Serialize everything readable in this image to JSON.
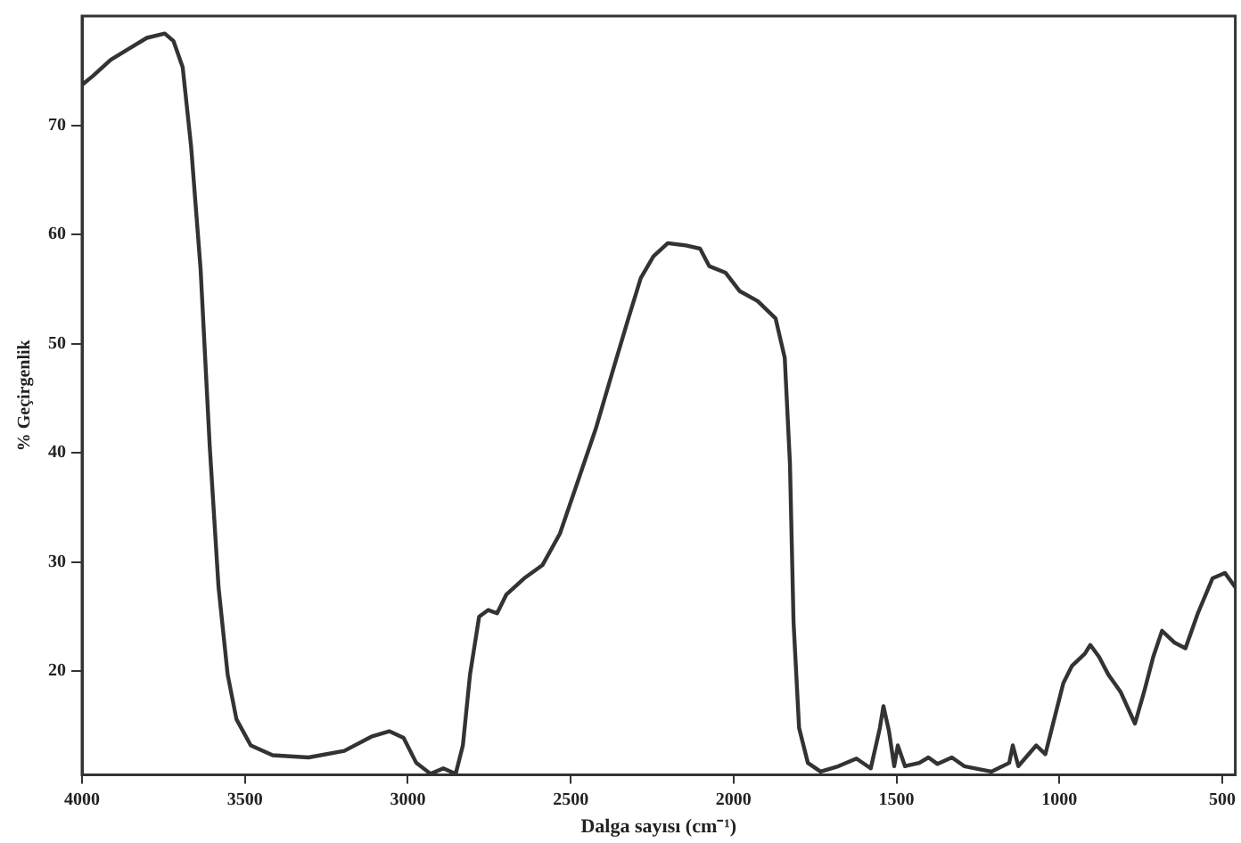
{
  "chart_data": {
    "type": "line",
    "xlabel": "Dalga sayısı (cm⁻¹)",
    "ylabel": "% Geçirgenlik",
    "xlim": [
      4000,
      460
    ],
    "xticks": [
      4000,
      3500,
      3000,
      2500,
      2000,
      1500,
      1000,
      500
    ],
    "ylim": [
      10.5,
      80
    ],
    "yticks": [
      20,
      30,
      40,
      50,
      60,
      70
    ],
    "grid": false,
    "legend": false,
    "marker": "none",
    "line_style": "solid",
    "series": [
      {
        "color": "#333333",
        "x": [
          4000,
          3967,
          3912,
          3857,
          3801,
          3746,
          3719,
          3691,
          3665,
          3636,
          3608,
          3581,
          3553,
          3526,
          3482,
          3415,
          3305,
          3195,
          3112,
          3057,
          3013,
          2974,
          2930,
          2891,
          2853,
          2831,
          2809,
          2781,
          2753,
          2726,
          2698,
          2643,
          2587,
          2533,
          2478,
          2422,
          2367,
          2323,
          2285,
          2246,
          2202,
          2147,
          2103,
          2075,
          2025,
          1981,
          1926,
          1871,
          1843,
          1827,
          1816,
          1799,
          1772,
          1733,
          1678,
          1623,
          1579,
          1551,
          1540,
          1523,
          1507,
          1496,
          1474,
          1430,
          1402,
          1374,
          1330,
          1292,
          1209,
          1154,
          1143,
          1126,
          1071,
          1043,
          1016,
          988,
          961,
          922,
          905,
          878,
          850,
          812,
          768,
          740,
          712,
          685,
          646,
          613,
          575,
          530,
          492,
          460
        ],
        "values": [
          73.7,
          74.5,
          76,
          77,
          78,
          78.4,
          77.7,
          75.3,
          68,
          56.8,
          40.6,
          27.7,
          19.7,
          15.6,
          13.2,
          12.3,
          12.1,
          12.7,
          14,
          14.5,
          13.9,
          11.6,
          10.6,
          11.1,
          10.6,
          13.2,
          19.7,
          25,
          25.6,
          25.3,
          27,
          28.5,
          29.7,
          32.6,
          37.4,
          42.3,
          47.9,
          52.3,
          56,
          58,
          59.2,
          59,
          58.7,
          57.1,
          56.5,
          54.8,
          53.9,
          52.3,
          48.7,
          39,
          24.5,
          14.8,
          11.6,
          10.8,
          11.3,
          12,
          11.1,
          14.8,
          16.8,
          14.5,
          11.3,
          13.2,
          11.3,
          11.6,
          12.1,
          11.5,
          12.1,
          11.3,
          10.8,
          11.6,
          13.2,
          11.3,
          13.2,
          12.4,
          15.6,
          18.9,
          20.5,
          21.6,
          22.4,
          21.3,
          19.7,
          18.1,
          15.2,
          18.1,
          21.3,
          23.7,
          22.6,
          22.1,
          25.3,
          28.5,
          29,
          27.7
        ]
      }
    ]
  }
}
